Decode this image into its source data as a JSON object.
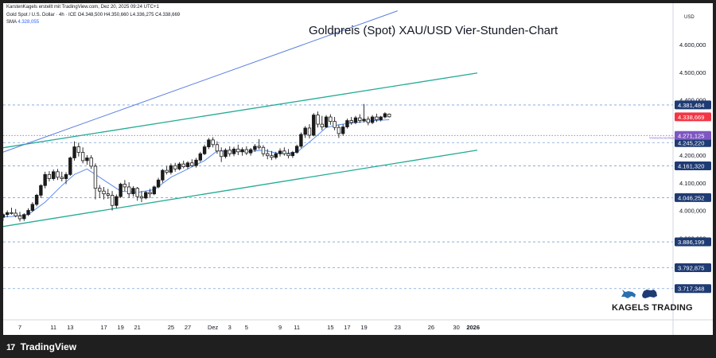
{
  "header": {
    "credit": "KarstenKagels erstellt mit TradingView.com, Dez 20, 2025 09:24 UTC+1",
    "symbol": "Gold Spot / U.S. Dollar · 4h · ICE",
    "ohlc": "O4.348,500  H4.350,660  L4.336,275  C4.338,669",
    "sma_label": "SMA",
    "sma_value": "4.328,055"
  },
  "title": "Goldpreis (Spot) XAU/USD Vier-Stunden-Chart",
  "currency": "USD",
  "footer": {
    "logo_text": "TradingView",
    "logo_mark": "17"
  },
  "branding": {
    "text": "KAGELS TRADING"
  },
  "colors": {
    "up": "#1b1b1b",
    "down": "#ffffff",
    "sma": "#5b8def",
    "channel": "#22ab94",
    "upper_trend": "#5b7fe0",
    "level": "#7aa3d8",
    "current": "#f23645",
    "purple": "#7e57c2",
    "navy": "#1f3b73"
  },
  "chart_data": {
    "type": "candlestick",
    "title": "Goldpreis (Spot) XAU/USD Vier-Stunden-Chart",
    "y_unit": "USD",
    "ylim": [
      3700,
      4700
    ],
    "y_ticks": [
      {
        "value": 4600,
        "label": "4.600,000"
      },
      {
        "value": 4500,
        "label": "4.500,000"
      },
      {
        "value": 4400,
        "label": "4.400,000"
      },
      {
        "value": 4200,
        "label": "4.200,000"
      },
      {
        "value": 4100,
        "label": "4.100,000"
      },
      {
        "value": 4000,
        "label": "4.000,000"
      },
      {
        "value": 3900,
        "label": "3.900,000"
      },
      {
        "value": 3800,
        "label": "3.800,000"
      }
    ],
    "x_ticks": [
      {
        "day": 7,
        "label": "7"
      },
      {
        "day": 11,
        "label": "11"
      },
      {
        "day": 13,
        "label": "13"
      },
      {
        "day": 17,
        "label": "17"
      },
      {
        "day": 19,
        "label": "19"
      },
      {
        "day": 21,
        "label": "21"
      },
      {
        "day": 25,
        "label": "25"
      },
      {
        "day": 27,
        "label": "27"
      },
      {
        "day": 30,
        "label": "Dez"
      },
      {
        "day": 32,
        "label": "3"
      },
      {
        "day": 34,
        "label": "5"
      },
      {
        "day": 38,
        "label": "9"
      },
      {
        "day": 40,
        "label": "11"
      },
      {
        "day": 44,
        "label": "15"
      },
      {
        "day": 46,
        "label": "17"
      },
      {
        "day": 48,
        "label": "19"
      },
      {
        "day": 52,
        "label": "23"
      },
      {
        "day": 56,
        "label": "26"
      },
      {
        "day": 59,
        "label": "30"
      },
      {
        "day": 61,
        "label": "2026"
      }
    ],
    "horizontal_levels": [
      {
        "value": 4381.484,
        "label": "4.381,484",
        "style": "navy"
      },
      {
        "value": 4245.22,
        "label": "4.245,220",
        "style": "navy"
      },
      {
        "value": 4161.32,
        "label": "4.161,320",
        "style": "navy"
      },
      {
        "value": 4046.252,
        "label": "4.046,252",
        "style": "navy"
      },
      {
        "value": 3886.199,
        "label": "3.886,199",
        "style": "navy"
      },
      {
        "value": 3792.875,
        "label": "3.792,875",
        "style": "navy"
      },
      {
        "value": 3717.348,
        "label": "3.717,348",
        "style": "navy"
      }
    ],
    "current_price": {
      "value": 4338.669,
      "label": "4.338,669"
    },
    "previous_week_close": {
      "value": 4271.125,
      "label": "4.271,125",
      "note": "Vorwochenschluss"
    },
    "trend_channel": [
      {
        "name": "upper",
        "from": {
          "day": 4,
          "value": 4222
        },
        "to": {
          "day": 61.5,
          "value": 4497
        }
      },
      {
        "name": "lower",
        "from": {
          "day": 4,
          "value": 3937
        },
        "to": {
          "day": 61.5,
          "value": 4218
        }
      }
    ],
    "upper_trend": {
      "from": {
        "day": 4,
        "value": 4200
      },
      "to": {
        "day": 52,
        "value": 4722
      }
    },
    "candles": [
      {
        "day": 4.0,
        "o": 3980,
        "h": 3995,
        "l": 3970,
        "c": 3985
      },
      {
        "day": 4.5,
        "o": 3985,
        "h": 3998,
        "l": 3965,
        "c": 3975
      },
      {
        "day": 5.0,
        "o": 3975,
        "h": 3990,
        "l": 3962,
        "c": 3985
      },
      {
        "day": 5.5,
        "o": 3985,
        "h": 4000,
        "l": 3975,
        "c": 3992
      },
      {
        "day": 6.0,
        "o": 3992,
        "h": 4010,
        "l": 3985,
        "c": 3990
      },
      {
        "day": 6.5,
        "o": 3990,
        "h": 4005,
        "l": 3975,
        "c": 3980
      },
      {
        "day": 7.0,
        "o": 3980,
        "h": 3995,
        "l": 3960,
        "c": 3970
      },
      {
        "day": 7.5,
        "o": 3970,
        "h": 3990,
        "l": 3962,
        "c": 3985
      },
      {
        "day": 8.0,
        "o": 3985,
        "h": 4008,
        "l": 3980,
        "c": 4000
      },
      {
        "day": 8.5,
        "o": 4000,
        "h": 4030,
        "l": 3995,
        "c": 4022
      },
      {
        "day": 9.0,
        "o": 4022,
        "h": 4060,
        "l": 4015,
        "c": 4055
      },
      {
        "day": 9.5,
        "o": 4055,
        "h": 4095,
        "l": 4045,
        "c": 4090
      },
      {
        "day": 10.0,
        "o": 4090,
        "h": 4140,
        "l": 4080,
        "c": 4130
      },
      {
        "day": 10.5,
        "o": 4130,
        "h": 4142,
        "l": 4105,
        "c": 4115
      },
      {
        "day": 11.0,
        "o": 4115,
        "h": 4148,
        "l": 4108,
        "c": 4140
      },
      {
        "day": 11.5,
        "o": 4140,
        "h": 4150,
        "l": 4110,
        "c": 4120
      },
      {
        "day": 12.0,
        "o": 4120,
        "h": 4140,
        "l": 4105,
        "c": 4115
      },
      {
        "day": 12.5,
        "o": 4115,
        "h": 4138,
        "l": 4095,
        "c": 4130
      },
      {
        "day": 13.0,
        "o": 4130,
        "h": 4195,
        "l": 4125,
        "c": 4190
      },
      {
        "day": 13.5,
        "o": 4190,
        "h": 4250,
        "l": 4180,
        "c": 4230
      },
      {
        "day": 14.0,
        "o": 4230,
        "h": 4245,
        "l": 4195,
        "c": 4210
      },
      {
        "day": 14.5,
        "o": 4210,
        "h": 4228,
        "l": 4170,
        "c": 4180
      },
      {
        "day": 15.0,
        "o": 4180,
        "h": 4200,
        "l": 4165,
        "c": 4190
      },
      {
        "day": 15.5,
        "o": 4190,
        "h": 4200,
        "l": 4150,
        "c": 4160
      },
      {
        "day": 16.0,
        "o": 4160,
        "h": 4170,
        "l": 4040,
        "c": 4080
      },
      {
        "day": 16.5,
        "o": 4080,
        "h": 4092,
        "l": 4045,
        "c": 4070
      },
      {
        "day": 17.0,
        "o": 4070,
        "h": 4085,
        "l": 4040,
        "c": 4060
      },
      {
        "day": 17.5,
        "o": 4060,
        "h": 4078,
        "l": 4042,
        "c": 4055
      },
      {
        "day": 18.0,
        "o": 4055,
        "h": 4070,
        "l": 4000,
        "c": 4018
      },
      {
        "day": 18.5,
        "o": 4018,
        "h": 4058,
        "l": 4008,
        "c": 4050
      },
      {
        "day": 19.0,
        "o": 4050,
        "h": 4100,
        "l": 4045,
        "c": 4095
      },
      {
        "day": 19.5,
        "o": 4095,
        "h": 4110,
        "l": 4070,
        "c": 4085
      },
      {
        "day": 20.0,
        "o": 4085,
        "h": 4102,
        "l": 4045,
        "c": 4060
      },
      {
        "day": 20.5,
        "o": 4060,
        "h": 4088,
        "l": 4050,
        "c": 4080
      },
      {
        "day": 21.0,
        "o": 4080,
        "h": 4085,
        "l": 4035,
        "c": 4050
      },
      {
        "day": 21.5,
        "o": 4050,
        "h": 4070,
        "l": 4030,
        "c": 4045
      },
      {
        "day": 22.0,
        "o": 4045,
        "h": 4070,
        "l": 4040,
        "c": 4065
      },
      {
        "day": 22.5,
        "o": 4065,
        "h": 4078,
        "l": 4045,
        "c": 4060
      },
      {
        "day": 23.0,
        "o": 4060,
        "h": 4090,
        "l": 4055,
        "c": 4085
      },
      {
        "day": 23.5,
        "o": 4085,
        "h": 4118,
        "l": 4080,
        "c": 4110
      },
      {
        "day": 24.0,
        "o": 4110,
        "h": 4150,
        "l": 4100,
        "c": 4145
      },
      {
        "day": 24.5,
        "o": 4145,
        "h": 4160,
        "l": 4130,
        "c": 4138
      },
      {
        "day": 25.0,
        "o": 4138,
        "h": 4170,
        "l": 4130,
        "c": 4162
      },
      {
        "day": 25.5,
        "o": 4162,
        "h": 4172,
        "l": 4140,
        "c": 4150
      },
      {
        "day": 26.0,
        "o": 4150,
        "h": 4175,
        "l": 4145,
        "c": 4168
      },
      {
        "day": 26.5,
        "o": 4168,
        "h": 4180,
        "l": 4152,
        "c": 4158
      },
      {
        "day": 27.0,
        "o": 4158,
        "h": 4178,
        "l": 4150,
        "c": 4172
      },
      {
        "day": 27.5,
        "o": 4172,
        "h": 4185,
        "l": 4158,
        "c": 4162
      },
      {
        "day": 28.0,
        "o": 4162,
        "h": 4190,
        "l": 4155,
        "c": 4182
      },
      {
        "day": 28.5,
        "o": 4182,
        "h": 4212,
        "l": 4175,
        "c": 4205
      },
      {
        "day": 29.0,
        "o": 4205,
        "h": 4238,
        "l": 4200,
        "c": 4230
      },
      {
        "day": 29.5,
        "o": 4230,
        "h": 4262,
        "l": 4222,
        "c": 4255
      },
      {
        "day": 30.0,
        "o": 4255,
        "h": 4265,
        "l": 4228,
        "c": 4238
      },
      {
        "day": 30.5,
        "o": 4238,
        "h": 4250,
        "l": 4205,
        "c": 4215
      },
      {
        "day": 31.0,
        "o": 4215,
        "h": 4228,
        "l": 4175,
        "c": 4195
      },
      {
        "day": 31.5,
        "o": 4195,
        "h": 4225,
        "l": 4188,
        "c": 4218
      },
      {
        "day": 32.0,
        "o": 4218,
        "h": 4232,
        "l": 4195,
        "c": 4205
      },
      {
        "day": 32.5,
        "o": 4205,
        "h": 4230,
        "l": 4196,
        "c": 4222
      },
      {
        "day": 33.0,
        "o": 4222,
        "h": 4238,
        "l": 4200,
        "c": 4212
      },
      {
        "day": 33.5,
        "o": 4212,
        "h": 4228,
        "l": 4198,
        "c": 4220
      },
      {
        "day": 34.0,
        "o": 4220,
        "h": 4232,
        "l": 4200,
        "c": 4208
      },
      {
        "day": 34.5,
        "o": 4208,
        "h": 4226,
        "l": 4198,
        "c": 4220
      },
      {
        "day": 35.0,
        "o": 4220,
        "h": 4240,
        "l": 4212,
        "c": 4232
      },
      {
        "day": 35.5,
        "o": 4232,
        "h": 4258,
        "l": 4220,
        "c": 4228
      },
      {
        "day": 36.0,
        "o": 4228,
        "h": 4236,
        "l": 4195,
        "c": 4205
      },
      {
        "day": 36.5,
        "o": 4205,
        "h": 4222,
        "l": 4185,
        "c": 4198
      },
      {
        "day": 37.0,
        "o": 4198,
        "h": 4215,
        "l": 4182,
        "c": 4192
      },
      {
        "day": 37.5,
        "o": 4192,
        "h": 4212,
        "l": 4185,
        "c": 4205
      },
      {
        "day": 38.0,
        "o": 4205,
        "h": 4225,
        "l": 4195,
        "c": 4215
      },
      {
        "day": 38.5,
        "o": 4215,
        "h": 4228,
        "l": 4198,
        "c": 4205
      },
      {
        "day": 39.0,
        "o": 4205,
        "h": 4222,
        "l": 4188,
        "c": 4198
      },
      {
        "day": 39.5,
        "o": 4198,
        "h": 4215,
        "l": 4190,
        "c": 4210
      },
      {
        "day": 40.0,
        "o": 4210,
        "h": 4238,
        "l": 4205,
        "c": 4232
      },
      {
        "day": 40.5,
        "o": 4232,
        "h": 4282,
        "l": 4225,
        "c": 4275
      },
      {
        "day": 41.0,
        "o": 4275,
        "h": 4305,
        "l": 4262,
        "c": 4298
      },
      {
        "day": 41.5,
        "o": 4298,
        "h": 4312,
        "l": 4260,
        "c": 4272
      },
      {
        "day": 42.0,
        "o": 4272,
        "h": 4352,
        "l": 4268,
        "c": 4345
      },
      {
        "day": 42.5,
        "o": 4345,
        "h": 4358,
        "l": 4300,
        "c": 4312
      },
      {
        "day": 43.0,
        "o": 4312,
        "h": 4342,
        "l": 4290,
        "c": 4302
      },
      {
        "day": 43.5,
        "o": 4302,
        "h": 4345,
        "l": 4298,
        "c": 4338
      },
      {
        "day": 44.0,
        "o": 4338,
        "h": 4348,
        "l": 4310,
        "c": 4322
      },
      {
        "day": 44.5,
        "o": 4322,
        "h": 4338,
        "l": 4290,
        "c": 4300
      },
      {
        "day": 45.0,
        "o": 4300,
        "h": 4310,
        "l": 4262,
        "c": 4278
      },
      {
        "day": 45.5,
        "o": 4278,
        "h": 4312,
        "l": 4270,
        "c": 4302
      },
      {
        "day": 46.0,
        "o": 4302,
        "h": 4332,
        "l": 4296,
        "c": 4325
      },
      {
        "day": 46.5,
        "o": 4325,
        "h": 4338,
        "l": 4310,
        "c": 4318
      },
      {
        "day": 47.0,
        "o": 4318,
        "h": 4342,
        "l": 4312,
        "c": 4335
      },
      {
        "day": 47.5,
        "o": 4335,
        "h": 4348,
        "l": 4316,
        "c": 4325
      },
      {
        "day": 48.0,
        "o": 4325,
        "h": 4385,
        "l": 4318,
        "c": 4330
      },
      {
        "day": 48.5,
        "o": 4330,
        "h": 4340,
        "l": 4308,
        "c": 4318
      },
      {
        "day": 49.0,
        "o": 4318,
        "h": 4345,
        "l": 4312,
        "c": 4338
      },
      {
        "day": 49.5,
        "o": 4338,
        "h": 4350,
        "l": 4320,
        "c": 4328
      },
      {
        "day": 50.0,
        "o": 4328,
        "h": 4342,
        "l": 4322,
        "c": 4338
      },
      {
        "day": 50.5,
        "o": 4338,
        "h": 4355,
        "l": 4333,
        "c": 4350
      },
      {
        "day": 51.0,
        "o": 4348.5,
        "h": 4350.66,
        "l": 4336.275,
        "c": 4338.669
      }
    ],
    "sma": [
      {
        "day": 4.0,
        "value": 3975
      },
      {
        "day": 6.0,
        "value": 3978
      },
      {
        "day": 8.0,
        "value": 3985
      },
      {
        "day": 10.0,
        "value": 4030
      },
      {
        "day": 12.0,
        "value": 4090
      },
      {
        "day": 13.5,
        "value": 4130
      },
      {
        "day": 15.0,
        "value": 4150
      },
      {
        "day": 17.0,
        "value": 4110
      },
      {
        "day": 19.0,
        "value": 4070
      },
      {
        "day": 21.0,
        "value": 4065
      },
      {
        "day": 23.0,
        "value": 4075
      },
      {
        "day": 25.0,
        "value": 4120
      },
      {
        "day": 27.0,
        "value": 4150
      },
      {
        "day": 29.0,
        "value": 4180
      },
      {
        "day": 30.5,
        "value": 4215
      },
      {
        "day": 32.0,
        "value": 4215
      },
      {
        "day": 34.0,
        "value": 4212
      },
      {
        "day": 36.0,
        "value": 4218
      },
      {
        "day": 38.0,
        "value": 4205
      },
      {
        "day": 40.0,
        "value": 4210
      },
      {
        "day": 42.0,
        "value": 4260
      },
      {
        "day": 43.5,
        "value": 4300
      },
      {
        "day": 45.0,
        "value": 4310
      },
      {
        "day": 47.0,
        "value": 4318
      },
      {
        "day": 49.0,
        "value": 4325
      },
      {
        "day": 51.0,
        "value": 4328
      }
    ]
  }
}
